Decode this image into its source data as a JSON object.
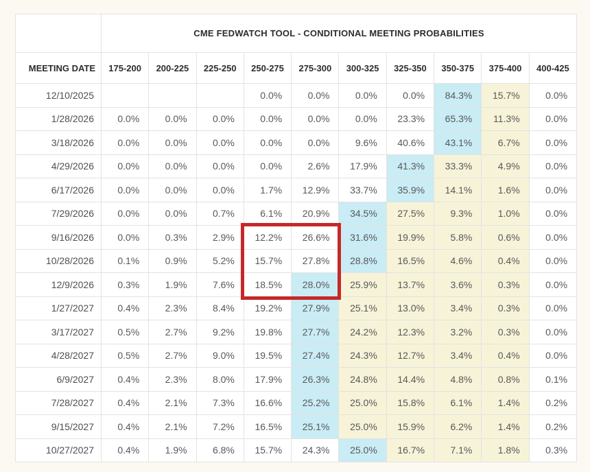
{
  "colors": {
    "highlight_blue": "#c9ecf5",
    "highlight_yellow": "#f6f3d8",
    "annotation_red": "#c62828",
    "header_text": "#2c2c2c",
    "data_text": "#585858"
  },
  "chart_data": {
    "type": "table",
    "title": "CME FEDWATCH TOOL - CONDITIONAL MEETING PROBABILITIES",
    "row_header": "MEETING DATE",
    "columns": [
      "175-200",
      "200-225",
      "225-250",
      "250-275",
      "275-300",
      "300-325",
      "325-350",
      "350-375",
      "375-400",
      "400-425"
    ],
    "highlight_legend": {
      "b": "blue (highest probability in row)",
      "y": "yellow tint"
    },
    "rows": [
      {
        "date": "12/10/2025",
        "values": [
          "",
          "",
          "",
          "0.0%",
          "0.0%",
          "0.0%",
          "0.0%",
          "84.3%",
          "15.7%",
          "0.0%"
        ],
        "highlight": [
          "",
          "",
          "",
          "",
          "",
          "",
          "",
          "b",
          "y",
          ""
        ]
      },
      {
        "date": "1/28/2026",
        "values": [
          "0.0%",
          "0.0%",
          "0.0%",
          "0.0%",
          "0.0%",
          "0.0%",
          "23.3%",
          "65.3%",
          "11.3%",
          "0.0%"
        ],
        "highlight": [
          "",
          "",
          "",
          "",
          "",
          "",
          "",
          "b",
          "y",
          ""
        ]
      },
      {
        "date": "3/18/2026",
        "values": [
          "0.0%",
          "0.0%",
          "0.0%",
          "0.0%",
          "0.0%",
          "9.6%",
          "40.6%",
          "43.1%",
          "6.7%",
          "0.0%"
        ],
        "highlight": [
          "",
          "",
          "",
          "",
          "",
          "",
          "",
          "b",
          "y",
          ""
        ]
      },
      {
        "date": "4/29/2026",
        "values": [
          "0.0%",
          "0.0%",
          "0.0%",
          "0.0%",
          "2.6%",
          "17.9%",
          "41.3%",
          "33.3%",
          "4.9%",
          "0.0%"
        ],
        "highlight": [
          "",
          "",
          "",
          "",
          "",
          "",
          "b",
          "y",
          "y",
          ""
        ]
      },
      {
        "date": "6/17/2026",
        "values": [
          "0.0%",
          "0.0%",
          "0.0%",
          "1.7%",
          "12.9%",
          "33.7%",
          "35.9%",
          "14.1%",
          "1.6%",
          "0.0%"
        ],
        "highlight": [
          "",
          "",
          "",
          "",
          "",
          "",
          "b",
          "y",
          "y",
          ""
        ]
      },
      {
        "date": "7/29/2026",
        "values": [
          "0.0%",
          "0.0%",
          "0.7%",
          "6.1%",
          "20.9%",
          "34.5%",
          "27.5%",
          "9.3%",
          "1.0%",
          "0.0%"
        ],
        "highlight": [
          "",
          "",
          "",
          "",
          "",
          "b",
          "y",
          "y",
          "y",
          ""
        ]
      },
      {
        "date": "9/16/2026",
        "values": [
          "0.0%",
          "0.3%",
          "2.9%",
          "12.2%",
          "26.6%",
          "31.6%",
          "19.9%",
          "5.8%",
          "0.6%",
          "0.0%"
        ],
        "highlight": [
          "",
          "",
          "",
          "",
          "",
          "b",
          "y",
          "y",
          "y",
          ""
        ]
      },
      {
        "date": "10/28/2026",
        "values": [
          "0.1%",
          "0.9%",
          "5.2%",
          "15.7%",
          "27.8%",
          "28.8%",
          "16.5%",
          "4.6%",
          "0.4%",
          "0.0%"
        ],
        "highlight": [
          "",
          "",
          "",
          "",
          "",
          "b",
          "y",
          "y",
          "y",
          ""
        ]
      },
      {
        "date": "12/9/2026",
        "values": [
          "0.3%",
          "1.9%",
          "7.6%",
          "18.5%",
          "28.0%",
          "25.9%",
          "13.7%",
          "3.6%",
          "0.3%",
          "0.0%"
        ],
        "highlight": [
          "",
          "",
          "",
          "",
          "b",
          "y",
          "y",
          "y",
          "y",
          ""
        ]
      },
      {
        "date": "1/27/2027",
        "values": [
          "0.4%",
          "2.3%",
          "8.4%",
          "19.2%",
          "27.9%",
          "25.1%",
          "13.0%",
          "3.4%",
          "0.3%",
          "0.0%"
        ],
        "highlight": [
          "",
          "",
          "",
          "",
          "b",
          "y",
          "y",
          "y",
          "y",
          ""
        ]
      },
      {
        "date": "3/17/2027",
        "values": [
          "0.5%",
          "2.7%",
          "9.2%",
          "19.8%",
          "27.7%",
          "24.2%",
          "12.3%",
          "3.2%",
          "0.3%",
          "0.0%"
        ],
        "highlight": [
          "",
          "",
          "",
          "",
          "b",
          "y",
          "y",
          "y",
          "y",
          ""
        ]
      },
      {
        "date": "4/28/2027",
        "values": [
          "0.5%",
          "2.7%",
          "9.0%",
          "19.5%",
          "27.4%",
          "24.3%",
          "12.7%",
          "3.4%",
          "0.4%",
          "0.0%"
        ],
        "highlight": [
          "",
          "",
          "",
          "",
          "b",
          "y",
          "y",
          "y",
          "y",
          ""
        ]
      },
      {
        "date": "6/9/2027",
        "values": [
          "0.4%",
          "2.3%",
          "8.0%",
          "17.9%",
          "26.3%",
          "24.8%",
          "14.4%",
          "4.8%",
          "0.8%",
          "0.1%"
        ],
        "highlight": [
          "",
          "",
          "",
          "",
          "b",
          "y",
          "y",
          "y",
          "y",
          ""
        ]
      },
      {
        "date": "7/28/2027",
        "values": [
          "0.4%",
          "2.1%",
          "7.3%",
          "16.6%",
          "25.2%",
          "25.0%",
          "15.8%",
          "6.1%",
          "1.4%",
          "0.2%"
        ],
        "highlight": [
          "",
          "",
          "",
          "",
          "b",
          "y",
          "y",
          "y",
          "y",
          ""
        ]
      },
      {
        "date": "9/15/2027",
        "values": [
          "0.4%",
          "2.1%",
          "7.2%",
          "16.5%",
          "25.1%",
          "25.0%",
          "15.9%",
          "6.2%",
          "1.4%",
          "0.2%"
        ],
        "highlight": [
          "",
          "",
          "",
          "",
          "b",
          "y",
          "y",
          "y",
          "y",
          ""
        ]
      },
      {
        "date": "10/27/2027",
        "values": [
          "0.4%",
          "1.9%",
          "6.8%",
          "15.7%",
          "24.3%",
          "25.0%",
          "16.7%",
          "7.1%",
          "1.8%",
          "0.3%"
        ],
        "highlight": [
          "",
          "",
          "",
          "",
          "",
          "b",
          "y",
          "y",
          "y",
          ""
        ]
      }
    ],
    "annotation": {
      "shape": "red-rectangle",
      "columns_covered": [
        "250-275",
        "275-300"
      ],
      "rows_covered": [
        "9/16/2026",
        "10/28/2026",
        "12/9/2026"
      ],
      "color": "#c62828"
    }
  }
}
